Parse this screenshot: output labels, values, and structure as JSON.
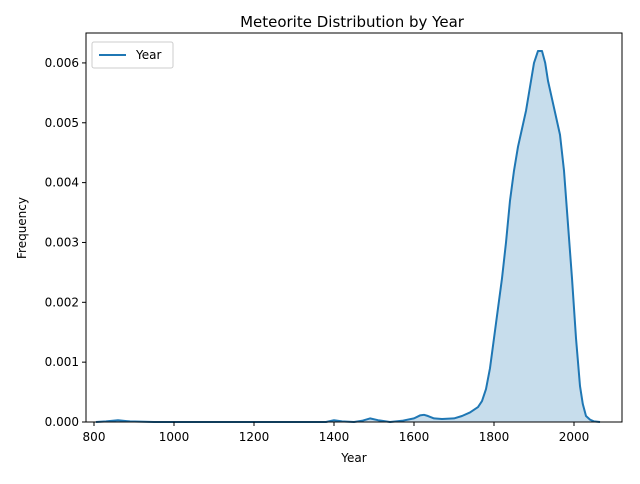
{
  "chart_data": {
    "type": "area",
    "title": "Meteorite Distribution by Year",
    "xlabel": "Year",
    "ylabel": "Frequency",
    "xlim": [
      780,
      2120
    ],
    "ylim": [
      0,
      0.0065
    ],
    "xticks": [
      800,
      1000,
      1200,
      1400,
      1600,
      1800,
      2000
    ],
    "xtick_labels": [
      "800",
      "1000",
      "1200",
      "1400",
      "1600",
      "1800",
      "2000"
    ],
    "yticks": [
      0,
      0.001,
      0.002,
      0.003,
      0.004,
      0.005,
      0.006
    ],
    "ytick_labels": [
      "0.000",
      "0.001",
      "0.002",
      "0.003",
      "0.004",
      "0.005",
      "0.006"
    ],
    "grid": false,
    "legend": {
      "placement": "top-left",
      "entries": [
        "Year"
      ]
    },
    "series": [
      {
        "name": "Year",
        "color": "#1f77b4",
        "fill_color": "#1f77b4",
        "fill_opacity": 0.25,
        "x": [
          805,
          830,
          860,
          890,
          950,
          1100,
          1300,
          1380,
          1400,
          1420,
          1450,
          1470,
          1490,
          1510,
          1540,
          1570,
          1600,
          1615,
          1625,
          1635,
          1650,
          1670,
          1700,
          1720,
          1740,
          1760,
          1770,
          1780,
          1790,
          1800,
          1810,
          1820,
          1830,
          1840,
          1850,
          1860,
          1870,
          1880,
          1890,
          1900,
          1910,
          1920,
          1928,
          1935,
          1945,
          1955,
          1965,
          1975,
          1985,
          1995,
          2005,
          2015,
          2022,
          2030,
          2040,
          2050,
          2065
        ],
        "y": [
          0.0,
          1e-05,
          3e-05,
          1e-05,
          0.0,
          0.0,
          0.0,
          0.0,
          3e-05,
          1e-05,
          0.0,
          2e-05,
          6e-05,
          3e-05,
          0.0,
          2e-05,
          6e-05,
          0.00011,
          0.00012,
          0.0001,
          6e-05,
          5e-05,
          6e-05,
          0.0001,
          0.00016,
          0.00025,
          0.00035,
          0.00055,
          0.0009,
          0.0014,
          0.0019,
          0.0024,
          0.003,
          0.0037,
          0.0042,
          0.0046,
          0.0049,
          0.0052,
          0.0056,
          0.006,
          0.0062,
          0.0062,
          0.006,
          0.0057,
          0.0054,
          0.0051,
          0.0048,
          0.0042,
          0.0033,
          0.0024,
          0.0014,
          0.0006,
          0.0003,
          0.0001,
          4e-05,
          1e-05,
          0.0
        ]
      }
    ]
  }
}
